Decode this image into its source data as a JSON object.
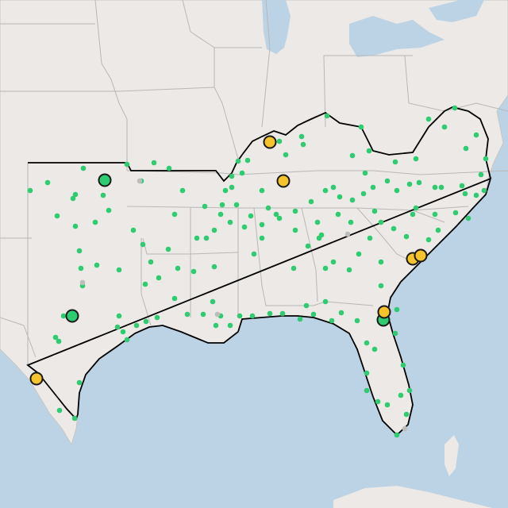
{
  "map": {
    "base": "terrain-basemap",
    "colors": {
      "land": "#ece9e6",
      "water": "#bcd3e6",
      "border": "#b8b8b8",
      "region_outline": "#000000",
      "small_marker": "#2ecc71",
      "small_marker_inactive": "#bdbdbd",
      "large_marker_green": "#2ecc71",
      "large_marker_yellow": "#f5c32c",
      "marker_stroke": "#1a1a1a"
    },
    "highlighted_region": "southeast-service-area",
    "large_markers": [
      {
        "status": "green"
      },
      {
        "status": "green"
      },
      {
        "status": "green"
      },
      {
        "status": "yellow"
      },
      {
        "status": "yellow"
      },
      {
        "status": "yellow"
      },
      {
        "status": "yellow"
      },
      {
        "status": "yellow"
      },
      {
        "status": "yellow"
      }
    ]
  }
}
